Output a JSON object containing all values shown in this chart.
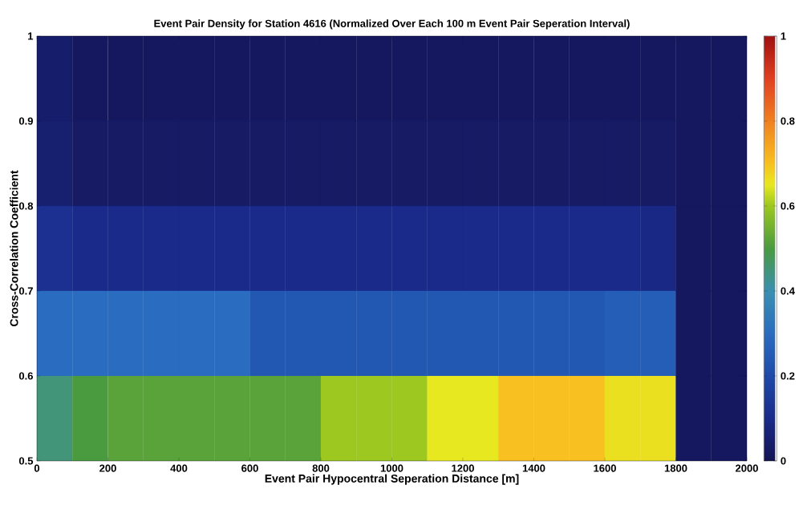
{
  "chart_data": {
    "type": "heatmap",
    "title": "Event Pair Density for Station 4616 (Normalized Over Each 100 m Event Pair Seperation Interval)",
    "xlabel": "Event Pair Hypocentral Seperation Distance [m]",
    "ylabel": "Cross-Correlation Coefficient",
    "x": [
      50,
      150,
      250,
      350,
      450,
      550,
      650,
      750,
      850,
      950,
      1050,
      1150,
      1250,
      1350,
      1450,
      1550,
      1650,
      1750,
      1850,
      1950
    ],
    "y": [
      0.95,
      0.85,
      0.75,
      0.65,
      0.55
    ],
    "cells": [
      [
        0.04,
        0.02,
        0.02,
        0.02,
        0.02,
        0.02,
        0.02,
        0.02,
        0.02,
        0.02,
        0.02,
        0.02,
        0.02,
        0.02,
        0.02,
        0.02,
        0.02,
        0.02,
        0.02,
        0.02
      ],
      [
        0.05,
        0.03,
        0.03,
        0.03,
        0.03,
        0.03,
        0.03,
        0.03,
        0.03,
        0.03,
        0.03,
        0.03,
        0.03,
        0.03,
        0.03,
        0.03,
        0.03,
        0.03,
        0.02,
        0.02
      ],
      [
        0.12,
        0.1,
        0.1,
        0.1,
        0.1,
        0.1,
        0.1,
        0.1,
        0.1,
        0.1,
        0.1,
        0.1,
        0.1,
        0.1,
        0.1,
        0.1,
        0.1,
        0.09,
        0.02,
        0.02
      ],
      [
        0.3,
        0.3,
        0.3,
        0.3,
        0.3,
        0.3,
        0.24,
        0.24,
        0.24,
        0.24,
        0.24,
        0.24,
        0.24,
        0.24,
        0.24,
        0.24,
        0.26,
        0.26,
        0.02,
        0.02
      ],
      [
        0.45,
        0.5,
        0.52,
        0.52,
        0.52,
        0.52,
        0.52,
        0.52,
        0.6,
        0.6,
        0.6,
        0.65,
        0.65,
        0.7,
        0.7,
        0.7,
        0.66,
        0.66,
        0.02,
        0.02
      ]
    ],
    "xlim": [
      0,
      2000
    ],
    "xticks": [
      0,
      200,
      400,
      600,
      800,
      1000,
      1200,
      1400,
      1600,
      1800,
      2000
    ],
    "ylim": [
      0.5,
      1
    ],
    "yticks": [
      0.5,
      0.6,
      0.7,
      0.8,
      0.9,
      1
    ],
    "clim": [
      0,
      1
    ],
    "cticks": [
      0,
      0.2,
      0.4,
      0.6,
      0.8,
      1
    ]
  }
}
